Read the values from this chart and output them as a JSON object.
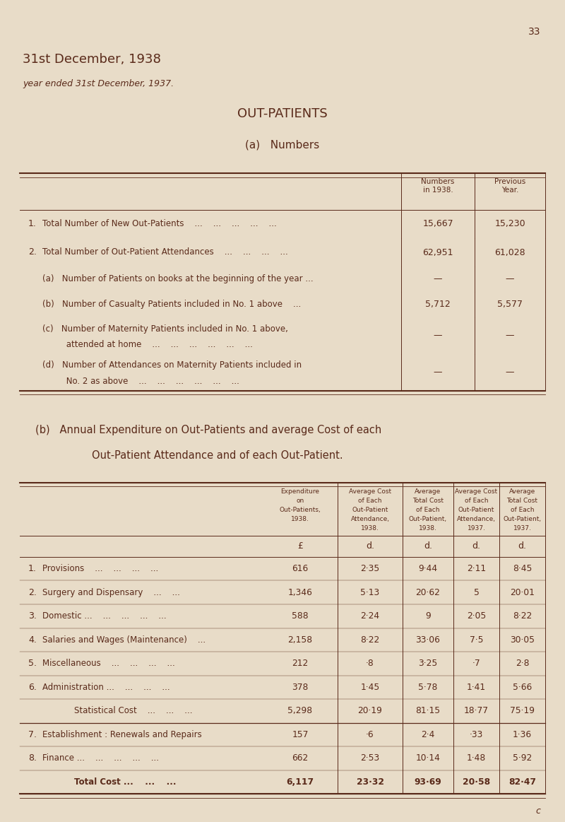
{
  "bg_color": "#e8dcc8",
  "text_color": "#5a2a1a",
  "page_number": "33",
  "title_line1": "31st December, 1938",
  "title_line2": "year ended 31st December, 1937.",
  "section_title": "OUT-PATIENTS",
  "subsection_a_title": "(a)   Numbers",
  "table_a_col_headers": [
    "Numbers\nin 1938.",
    "Previous\nYear."
  ],
  "table_a_rows": [
    {
      "num": "1.",
      "label": "Total Number of New Out-Patients    ...    ...    ...    ...    ...",
      "v1938": "15,667",
      "vprev": "15,230",
      "multiline": false
    },
    {
      "num": "2.",
      "label": "Total Number of Out-Patient Attendances    ...    ...    ...    ...",
      "v1938": "62,951",
      "vprev": "61,028",
      "multiline": false
    },
    {
      "num": "",
      "label": "(a)   Number of Patients on books at the beginning of the year ...",
      "v1938": "—",
      "vprev": "—",
      "multiline": false
    },
    {
      "num": "",
      "label": "(b)   Number of Casualty Patients included in No. 1 above    ...",
      "v1938": "5,712",
      "vprev": "5,577",
      "multiline": false
    },
    {
      "num": "",
      "label": "(c)   Number of Maternity Patients included in No. 1 above,|         attended at home    ...    ...    ...    ...    ...    ...",
      "v1938": "—",
      "vprev": "—",
      "multiline": true
    },
    {
      "num": "",
      "label": "(d)   Number of Attendances on Maternity Patients included in|         No. 2 as above    ...    ...    ...    ...    ...    ...",
      "v1938": "—",
      "vprev": "—",
      "multiline": true
    }
  ],
  "subsection_b_title_line1": "(b)   Annual Expenditure on Out-Patients and average Cost of each",
  "subsection_b_title_line2": "Out-Patient Attendance and of each Out-Patient.",
  "table_b_col_headers": [
    "Expenditure\non\nOut-Patients,\n1938.",
    "Average Cost\nof Each\nOut-Patient\nAttendance,\n1938.",
    "Average\nTotal Cost\nof Each\nOut-Patient,\n1938.",
    "Average Cost\nof Each\nOut-Patient\nAttendance,\n1937.",
    "Average\nTotal Cost\nof Each\nOut-Patient,\n1937."
  ],
  "table_b_unit_row": [
    "£",
    "d.",
    "d.",
    "d.",
    "d."
  ],
  "table_b_rows": [
    {
      "num": "1.",
      "label": "Provisions    ...    ...    ...    ...",
      "bold": false,
      "stat": false,
      "vals": [
        "616",
        "2·35",
        "9·44",
        "2·11",
        "8·45"
      ]
    },
    {
      "num": "2.",
      "label": "Surgery and Dispensary    ...    ...",
      "bold": false,
      "stat": false,
      "vals": [
        "1,346",
        "5·13",
        "20·62",
        "5",
        "20·01"
      ]
    },
    {
      "num": "3.",
      "label": "Domestic ...    ...    ...    ...    ...",
      "bold": false,
      "stat": false,
      "vals": [
        "588",
        "2·24",
        "9",
        "2·05",
        "8·22"
      ]
    },
    {
      "num": "4.",
      "label": "Salaries and Wages (Maintenance)    ...",
      "bold": false,
      "stat": false,
      "vals": [
        "2,158",
        "8·22",
        "33·06",
        "7·5",
        "30·05"
      ]
    },
    {
      "num": "5.",
      "label": "Miscellaneous    ...    ...    ...    ...",
      "bold": false,
      "stat": false,
      "vals": [
        "212",
        "·8",
        "3·25",
        "·7",
        "2·8"
      ]
    },
    {
      "num": "6.",
      "label": "Administration ...    ...    ...    ...",
      "bold": false,
      "stat": false,
      "vals": [
        "378",
        "1·45",
        "5·78",
        "1·41",
        "5·66"
      ]
    },
    {
      "num": "",
      "label": "Statistical Cost    ...    ...    ...",
      "bold": false,
      "stat": true,
      "vals": [
        "5,298",
        "20·19",
        "81·15",
        "18·77",
        "75·19"
      ]
    },
    {
      "num": "7.",
      "label": "Establishment : Renewals and Repairs",
      "bold": false,
      "stat": false,
      "vals": [
        "157",
        "·6",
        "2·4",
        "·33",
        "1·36"
      ]
    },
    {
      "num": "8.",
      "label": "Finance ...    ...    ...    ...    ...",
      "bold": false,
      "stat": false,
      "vals": [
        "662",
        "2·53",
        "10·14",
        "1·48",
        "5·92"
      ]
    },
    {
      "num": "",
      "label": "Total Cost ...    ...    ...",
      "bold": true,
      "stat": false,
      "vals": [
        "6,117",
        "23·32",
        "93·69",
        "20·58",
        "82·47"
      ]
    }
  ],
  "footer_c": "c"
}
